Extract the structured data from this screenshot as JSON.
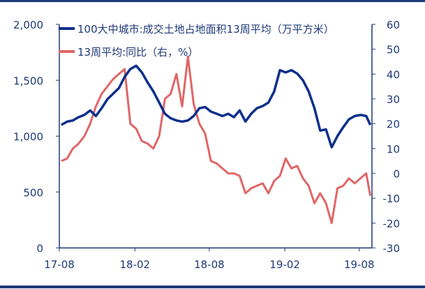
{
  "chart_data": {
    "type": "line",
    "grid": false,
    "legend_position": "top-left",
    "colors": {
      "frame": "#1f3a78",
      "text": "#1f3a78"
    },
    "x_ticks": [
      "17-08",
      "18-02",
      "18-08",
      "19-02",
      "19-08"
    ],
    "y_left": {
      "range": [
        0,
        2000
      ],
      "ticks": [
        "0",
        "500",
        "1,000",
        "1,500",
        "2,000"
      ]
    },
    "y_right": {
      "range": [
        -30,
        60
      ],
      "ticks": [
        "-30",
        "-20",
        "-10",
        "0",
        "10",
        "20",
        "30",
        "40",
        "50",
        "60"
      ]
    },
    "series": [
      {
        "name": "100大中城市:成交土地占地面积13周平均（万平方米）",
        "axis": "left",
        "color": "#0d2f8c",
        "points": [
          [
            "2017-08-06",
            1100
          ],
          [
            "2017-08-20",
            1130
          ],
          [
            "2017-09-03",
            1140
          ],
          [
            "2017-09-17",
            1170
          ],
          [
            "2017-10-01",
            1190
          ],
          [
            "2017-10-15",
            1230
          ],
          [
            "2017-10-29",
            1180
          ],
          [
            "2017-11-12",
            1250
          ],
          [
            "2017-11-26",
            1330
          ],
          [
            "2017-12-10",
            1380
          ],
          [
            "2017-12-24",
            1430
          ],
          [
            "2018-01-07",
            1530
          ],
          [
            "2018-01-21",
            1600
          ],
          [
            "2018-02-04",
            1630
          ],
          [
            "2018-02-18",
            1570
          ],
          [
            "2018-03-04",
            1480
          ],
          [
            "2018-03-18",
            1400
          ],
          [
            "2018-04-01",
            1300
          ],
          [
            "2018-04-15",
            1200
          ],
          [
            "2018-04-29",
            1160
          ],
          [
            "2018-05-13",
            1140
          ],
          [
            "2018-05-27",
            1130
          ],
          [
            "2018-06-10",
            1140
          ],
          [
            "2018-06-24",
            1180
          ],
          [
            "2018-07-08",
            1250
          ],
          [
            "2018-07-22",
            1260
          ],
          [
            "2018-08-05",
            1220
          ],
          [
            "2018-08-19",
            1200
          ],
          [
            "2018-09-02",
            1180
          ],
          [
            "2018-09-16",
            1200
          ],
          [
            "2018-09-30",
            1170
          ],
          [
            "2018-10-14",
            1230
          ],
          [
            "2018-10-28",
            1130
          ],
          [
            "2018-11-11",
            1200
          ],
          [
            "2018-11-25",
            1250
          ],
          [
            "2018-12-09",
            1270
          ],
          [
            "2018-12-23",
            1300
          ],
          [
            "2019-01-06",
            1400
          ],
          [
            "2019-01-20",
            1590
          ],
          [
            "2019-02-03",
            1570
          ],
          [
            "2019-02-17",
            1590
          ],
          [
            "2019-03-03",
            1560
          ],
          [
            "2019-03-17",
            1500
          ],
          [
            "2019-03-31",
            1400
          ],
          [
            "2019-04-14",
            1250
          ],
          [
            "2019-04-28",
            1050
          ],
          [
            "2019-05-12",
            1060
          ],
          [
            "2019-05-26",
            900
          ],
          [
            "2019-06-09",
            1000
          ],
          [
            "2019-06-23",
            1080
          ],
          [
            "2019-07-07",
            1150
          ],
          [
            "2019-07-21",
            1180
          ],
          [
            "2019-08-04",
            1190
          ],
          [
            "2019-08-18",
            1180
          ],
          [
            "2019-08-28",
            1100
          ]
        ]
      },
      {
        "name": "13周平均:同比（右，%）",
        "axis": "right",
        "color": "#e06666",
        "points": [
          [
            "2017-08-06",
            5
          ],
          [
            "2017-08-20",
            6
          ],
          [
            "2017-09-03",
            10
          ],
          [
            "2017-09-17",
            12
          ],
          [
            "2017-10-01",
            15
          ],
          [
            "2017-10-15",
            20
          ],
          [
            "2017-10-29",
            27
          ],
          [
            "2017-11-12",
            32
          ],
          [
            "2017-11-26",
            35
          ],
          [
            "2017-12-10",
            38
          ],
          [
            "2017-12-24",
            40
          ],
          [
            "2018-01-07",
            42
          ],
          [
            "2018-01-21",
            20
          ],
          [
            "2018-02-04",
            18
          ],
          [
            "2018-02-18",
            13
          ],
          [
            "2018-03-04",
            12
          ],
          [
            "2018-03-18",
            10
          ],
          [
            "2018-04-01",
            15
          ],
          [
            "2018-04-15",
            30
          ],
          [
            "2018-04-29",
            32
          ],
          [
            "2018-05-13",
            40
          ],
          [
            "2018-05-27",
            27
          ],
          [
            "2018-06-10",
            47
          ],
          [
            "2018-06-24",
            28
          ],
          [
            "2018-07-08",
            20
          ],
          [
            "2018-07-22",
            16
          ],
          [
            "2018-08-05",
            5
          ],
          [
            "2018-08-19",
            4
          ],
          [
            "2018-09-02",
            2
          ],
          [
            "2018-09-16",
            0
          ],
          [
            "2018-09-30",
            0
          ],
          [
            "2018-10-14",
            -1
          ],
          [
            "2018-10-28",
            -8
          ],
          [
            "2018-11-11",
            -6
          ],
          [
            "2018-11-25",
            -5
          ],
          [
            "2018-12-09",
            -4
          ],
          [
            "2018-12-23",
            -8
          ],
          [
            "2019-01-06",
            -3
          ],
          [
            "2019-01-20",
            -1
          ],
          [
            "2019-02-03",
            6
          ],
          [
            "2019-02-17",
            2
          ],
          [
            "2019-03-03",
            3
          ],
          [
            "2019-03-17",
            -2
          ],
          [
            "2019-03-31",
            -5
          ],
          [
            "2019-04-14",
            -12
          ],
          [
            "2019-04-28",
            -8
          ],
          [
            "2019-05-12",
            -12
          ],
          [
            "2019-05-26",
            -20
          ],
          [
            "2019-06-09",
            -6
          ],
          [
            "2019-06-23",
            -5
          ],
          [
            "2019-07-07",
            -2
          ],
          [
            "2019-07-21",
            -4
          ],
          [
            "2019-08-04",
            -2
          ],
          [
            "2019-08-18",
            0
          ],
          [
            "2019-08-28",
            -9
          ]
        ]
      }
    ]
  }
}
